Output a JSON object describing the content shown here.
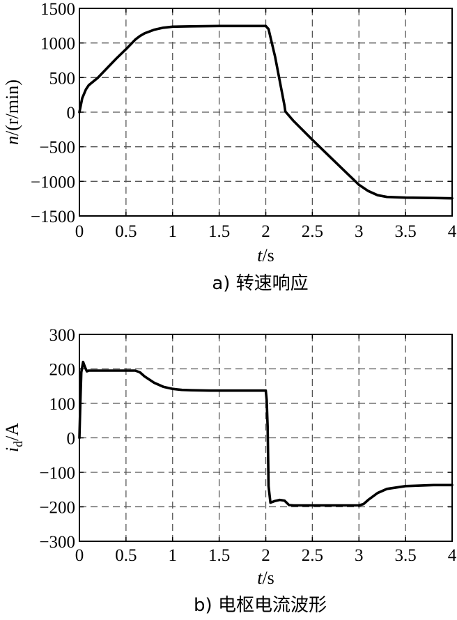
{
  "chart_data": [
    {
      "type": "line",
      "caption": "a) 转速响应",
      "xlabel_var": "t",
      "xlabel_unit": "/s",
      "ylabel_var": "n",
      "ylabel_unit": "/(r/min)",
      "xlim": [
        0,
        4
      ],
      "ylim": [
        -1500,
        1500
      ],
      "x_ticks": [
        0,
        0.5,
        1,
        1.5,
        2,
        2.5,
        3,
        3.5,
        4
      ],
      "x_tick_labels": [
        "0",
        "0.5",
        "1",
        "1.5",
        "2",
        "2.5",
        "3",
        "3.5",
        "4"
      ],
      "y_ticks": [
        1500,
        1000,
        500,
        0,
        -500,
        -1000,
        -1500
      ],
      "y_tick_labels": [
        "1500",
        "1000",
        "500",
        "0",
        "−500",
        "−1000",
        "−1500"
      ],
      "grid": true,
      "series": [
        {
          "x": [
            0,
            0.03,
            0.07,
            0.1,
            0.2,
            0.3,
            0.4,
            0.5,
            0.6,
            0.65,
            0.7,
            0.8,
            0.9,
            1.0,
            1.2,
            1.5,
            1.8,
            2.0,
            2.03,
            2.1,
            2.15,
            2.2,
            2.21,
            2.3,
            2.5,
            2.7,
            2.9,
            3.0,
            3.1,
            3.2,
            3.3,
            3.5,
            3.8,
            4.0
          ],
          "y": [
            0,
            200,
            330,
            390,
            500,
            640,
            780,
            910,
            1050,
            1100,
            1140,
            1190,
            1220,
            1235,
            1240,
            1245,
            1245,
            1245,
            1200,
            800,
            450,
            100,
            10,
            -130,
            -400,
            -660,
            -920,
            -1050,
            -1140,
            -1200,
            -1225,
            -1235,
            -1240,
            -1245
          ]
        }
      ]
    },
    {
      "type": "line",
      "caption": "b) 电枢电流波形",
      "xlabel_var": "t",
      "xlabel_unit": "/s",
      "ylabel_var": "i",
      "ylabel_sub": "d",
      "ylabel_unit": "/A",
      "xlim": [
        0,
        4
      ],
      "ylim": [
        -300,
        300
      ],
      "x_ticks": [
        0,
        0.5,
        1,
        1.5,
        2,
        2.5,
        3,
        3.5,
        4
      ],
      "x_tick_labels": [
        "0",
        "0.5",
        "1",
        "1.5",
        "2",
        "2.5",
        "3",
        "3.5",
        "4"
      ],
      "y_ticks": [
        300,
        200,
        100,
        0,
        -100,
        -200,
        -300
      ],
      "y_tick_labels": [
        "300",
        "200",
        "100",
        "0",
        "−100",
        "−200",
        "−300"
      ],
      "grid": true,
      "series": [
        {
          "x": [
            0,
            0.01,
            0.02,
            0.04,
            0.06,
            0.08,
            0.1,
            0.15,
            0.3,
            0.6,
            0.65,
            0.7,
            0.8,
            0.9,
            1.0,
            1.1,
            1.2,
            1.4,
            1.6,
            1.8,
            2.0,
            2.01,
            2.02,
            2.03,
            2.05,
            2.1,
            2.15,
            2.2,
            2.25,
            2.3,
            2.5,
            2.8,
            3.0,
            3.05,
            3.1,
            3.2,
            3.3,
            3.5,
            3.8,
            4.0
          ],
          "y": [
            0,
            100,
            190,
            220,
            205,
            193,
            195,
            195,
            195,
            195,
            190,
            178,
            160,
            148,
            142,
            139,
            138,
            137,
            137,
            137,
            137,
            110,
            30,
            -140,
            -188,
            -183,
            -180,
            -182,
            -195,
            -196,
            -196,
            -196,
            -196,
            -192,
            -180,
            -160,
            -148,
            -140,
            -137,
            -137
          ]
        }
      ]
    }
  ]
}
